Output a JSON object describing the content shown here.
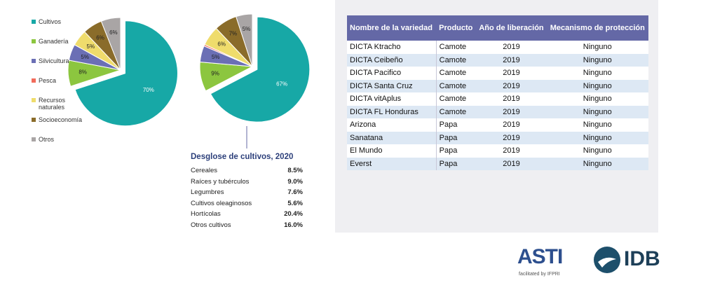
{
  "pie_categories": [
    "Cultivos",
    "Ganadería",
    "Silvicultura",
    "Pesca",
    "Recursos naturales",
    "Socioeconomía",
    "Otros"
  ],
  "pie_colors": [
    "#17a8a6",
    "#8cc63f",
    "#6b6fb5",
    "#f26b5b",
    "#efdc6c",
    "#8a6c2a",
    "#a9a5a5"
  ],
  "pies": [
    {
      "values": [
        70,
        8,
        5,
        0,
        5,
        6,
        6
      ],
      "value_labels": [
        "70%",
        "8%",
        "5%",
        null,
        "5%",
        "6%",
        "6%"
      ]
    },
    {
      "values": [
        67,
        9,
        5,
        0.5,
        6,
        7,
        5
      ],
      "value_labels": [
        "67%",
        "9%",
        "5%",
        null,
        "6%",
        "7%",
        "5%"
      ]
    }
  ],
  "breakdown": {
    "title": "Desglose de cultivos, 2020",
    "rows": [
      [
        "Cereales",
        "8.5%"
      ],
      [
        "Raíces y tubérculos",
        "9.0%"
      ],
      [
        "Legumbres",
        "7.6%"
      ],
      [
        "Cultivos oleaginosos",
        "5.6%"
      ],
      [
        "Hortícolas",
        "20.4%"
      ],
      [
        "Otros cultivos",
        "16.0%"
      ]
    ]
  },
  "table": {
    "header": [
      "Nombre de la variedad",
      "Producto",
      "Año de liberación",
      "Mecanismo de protección"
    ],
    "rows": [
      [
        "DICTA Ktracho",
        "Camote",
        "2019",
        "Ninguno"
      ],
      [
        "DICTA Ceibeño",
        "Camote",
        "2019",
        "Ninguno"
      ],
      [
        "DICTA Pacifico",
        "Camote",
        "2019",
        "Ninguno"
      ],
      [
        "DICTA Santa Cruz",
        "Camote",
        "2019",
        "Ninguno"
      ],
      [
        "DICTA vitAplus",
        "Camote",
        "2019",
        "Ninguno"
      ],
      [
        "DICTA FL Honduras",
        "Camote",
        "2019",
        "Ninguno"
      ],
      [
        "Arizona",
        "Papa",
        "2019",
        "Ninguno"
      ],
      [
        "Sanatana",
        "Papa",
        "2019",
        "Ninguno"
      ],
      [
        "El Mundo",
        "Papa",
        "2019",
        "Ninguno"
      ],
      [
        "Everst",
        "Papa",
        "2019",
        "Ninguno"
      ]
    ]
  },
  "logos": {
    "asti": "ASTI",
    "asti_tagline": "facilitated by IFPRI",
    "idb": "IDB"
  }
}
